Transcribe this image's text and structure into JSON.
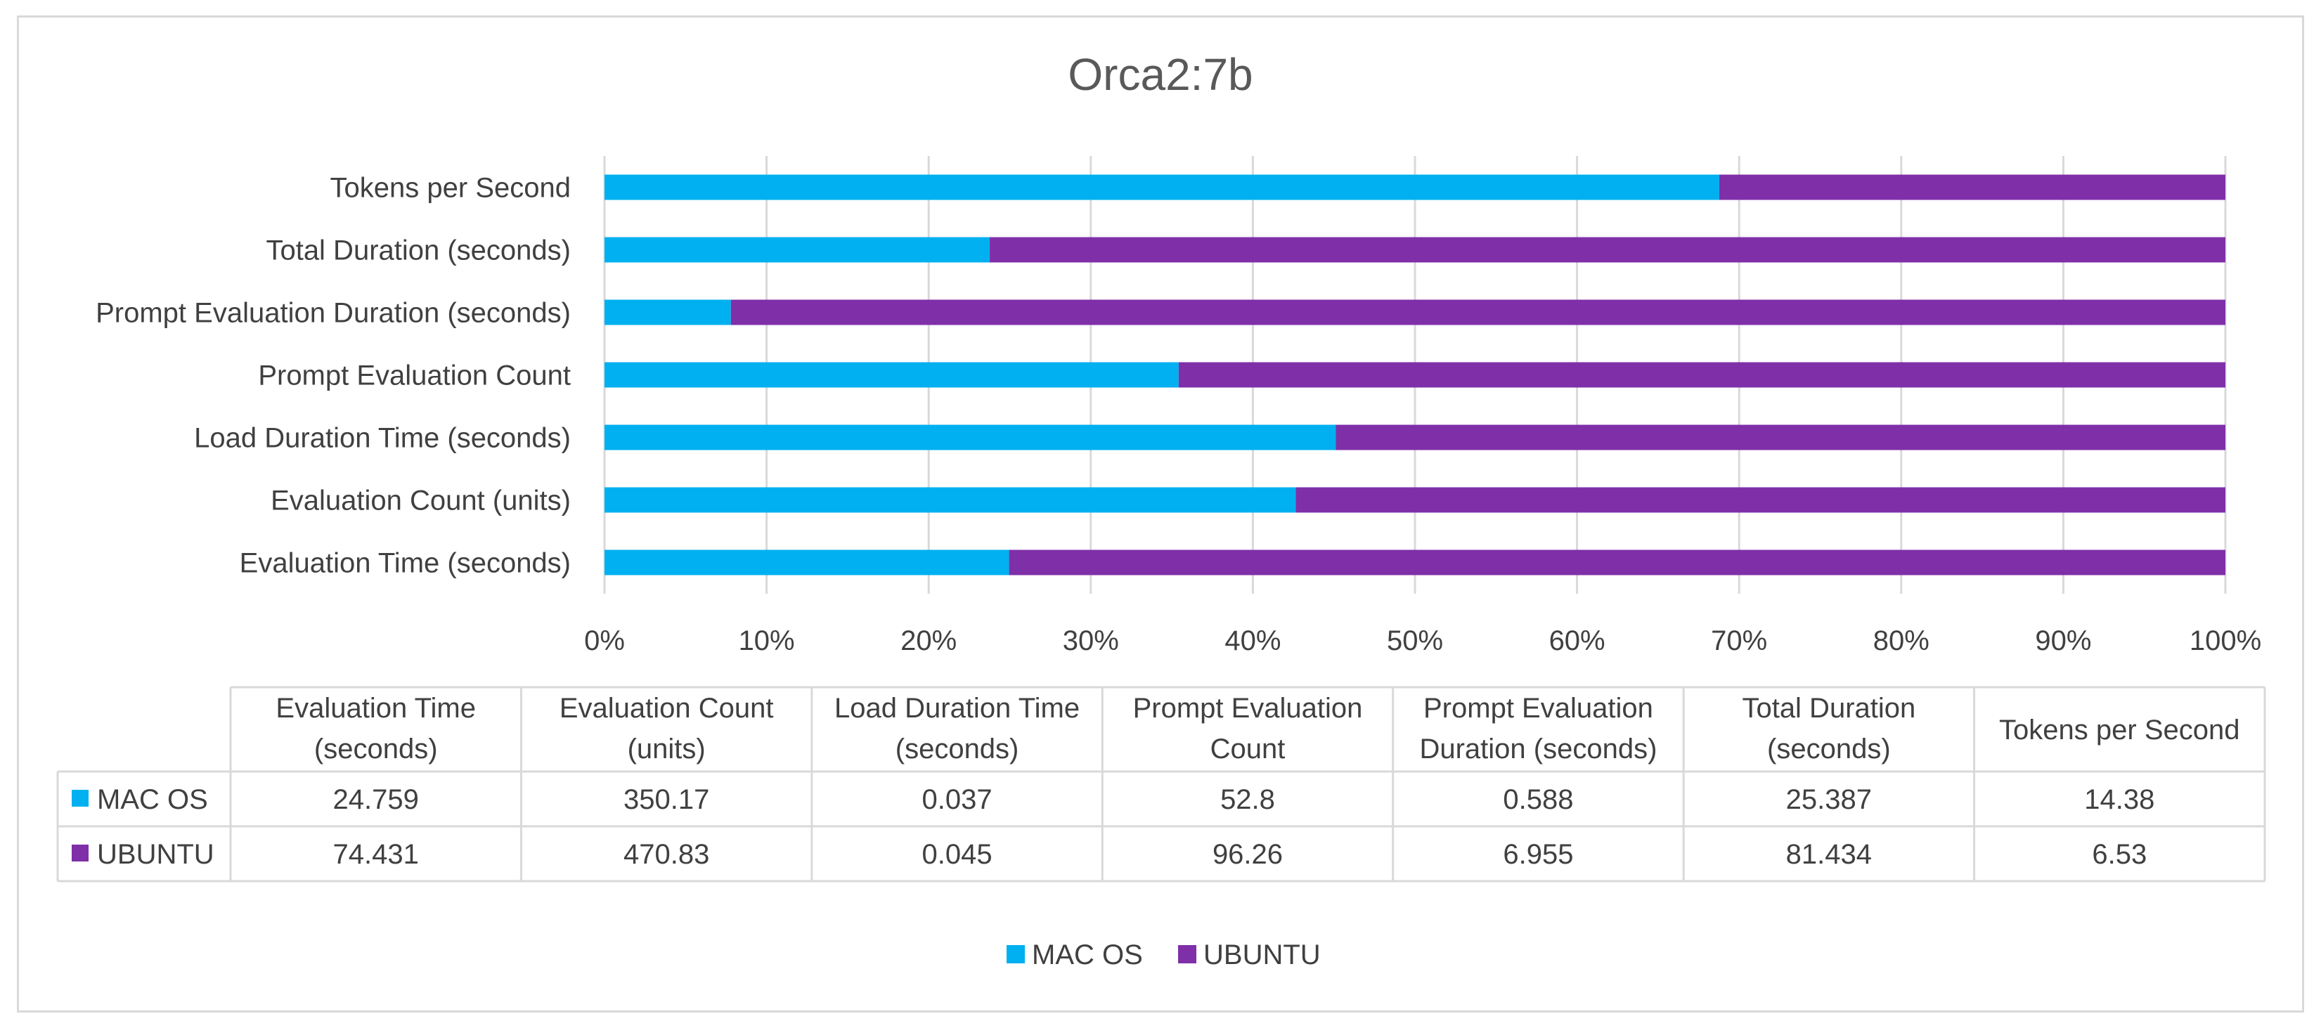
{
  "chart_data": {
    "type": "bar",
    "orientation": "horizontal",
    "stacking": "percent",
    "title": "Orca2:7b",
    "categories": [
      "Evaluation Time (seconds)",
      "Evaluation Count (units)",
      "Load Duration Time (seconds)",
      "Prompt Evaluation Count",
      "Prompt Evaluation Duration (seconds)",
      "Total Duration (seconds)",
      "Tokens per Second"
    ],
    "series": [
      {
        "name": "MAC OS",
        "color": "#00b0f0",
        "values": [
          24.759,
          350.17,
          0.037,
          52.8,
          0.588,
          25.387,
          14.38
        ],
        "table_text": [
          "24.759",
          "350.17",
          "0.037",
          "52.8",
          "0.588",
          "25.387",
          "14.38"
        ]
      },
      {
        "name": "UBUNTU",
        "color": "#7f2fa8",
        "values": [
          74.431,
          470.83,
          0.045,
          96.26,
          6.955,
          81.434,
          6.53
        ],
        "table_text": [
          "74.431",
          "470.83",
          "0.045",
          "96.26",
          "6.955",
          "81.434",
          "6.53"
        ]
      }
    ],
    "x_ticks": [
      "0%",
      "10%",
      "20%",
      "30%",
      "40%",
      "50%",
      "60%",
      "70%",
      "80%",
      "90%",
      "100%"
    ],
    "xlim": [
      0,
      1
    ],
    "grid": true,
    "legend": "bottom-center",
    "data_table": {
      "column_headers": [
        [
          "Evaluation Time",
          "(seconds)"
        ],
        [
          "Evaluation Count",
          "(units)"
        ],
        [
          "Load Duration Time",
          "(seconds)"
        ],
        [
          "Prompt Evaluation",
          "Count"
        ],
        [
          "Prompt Evaluation",
          "Duration (seconds)"
        ],
        [
          "Total Duration",
          "(seconds)"
        ],
        [
          "Tokens per Second"
        ]
      ]
    }
  }
}
